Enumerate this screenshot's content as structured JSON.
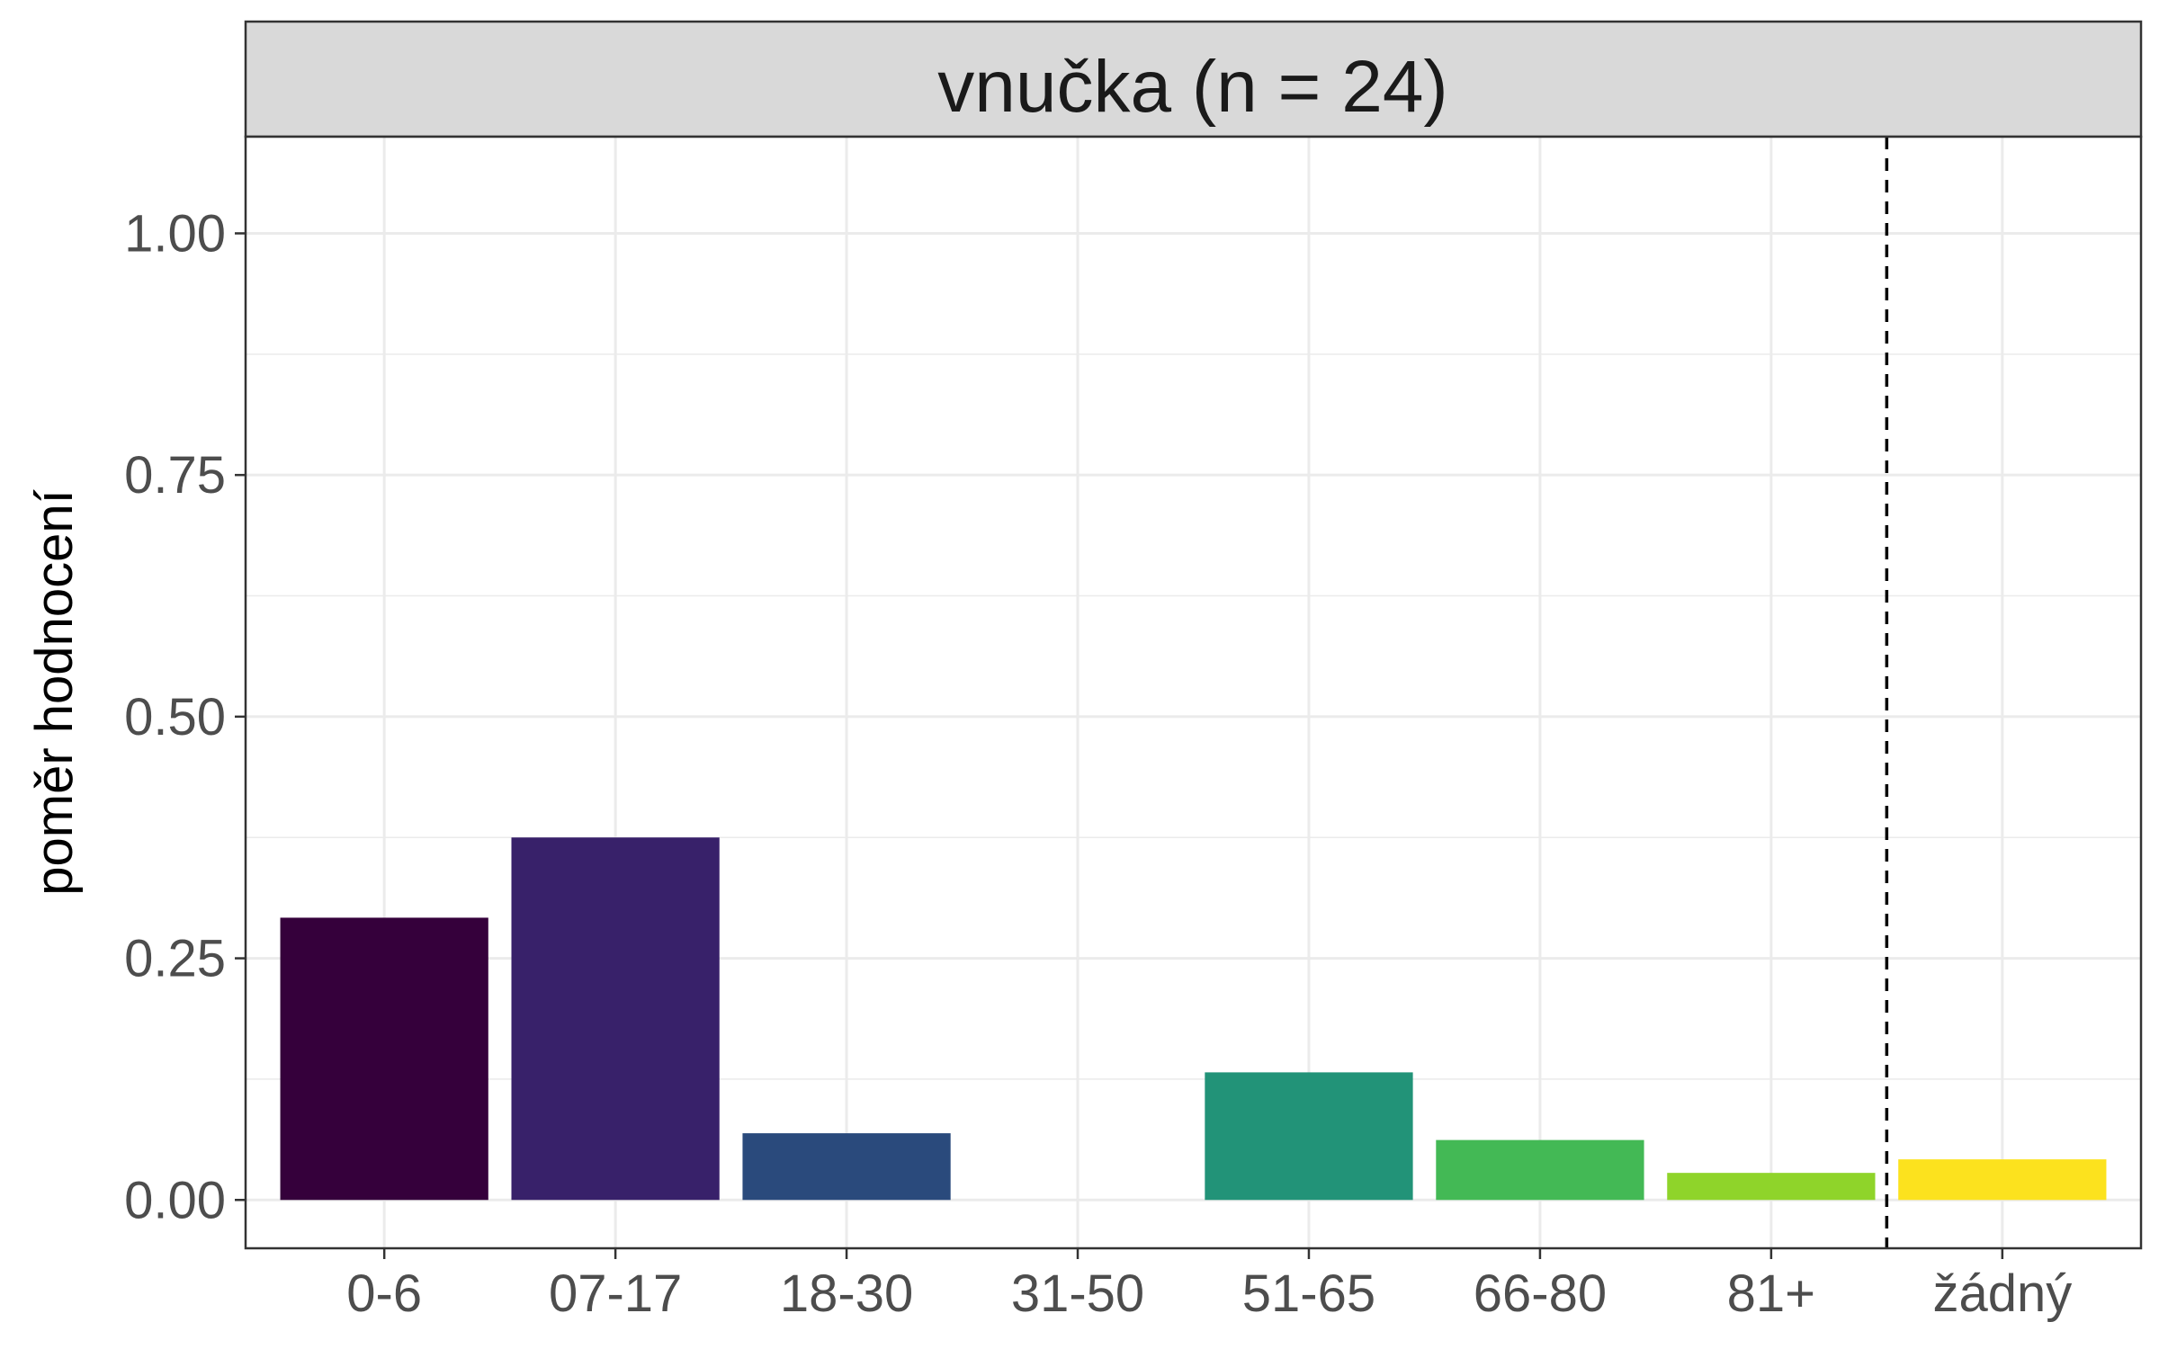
{
  "chart_data": {
    "type": "bar",
    "title": "vnučka (n = 24)",
    "xlabel": "",
    "ylabel": "poměr hodnocení",
    "categories": [
      "0-6",
      "07-17",
      "18-30",
      "31-50",
      "51-65",
      "66-80",
      "81+",
      "žádný"
    ],
    "values": [
      0.292,
      0.375,
      0.069,
      0.0,
      0.132,
      0.062,
      0.028,
      0.042
    ],
    "colors": [
      "#35003B",
      "#38216A",
      "#2A4A7C",
      "#1F7A8C",
      "#229378",
      "#43B955",
      "#8FD42A",
      "#FCE21E"
    ],
    "ylim": [
      -0.05,
      1.1
    ],
    "yticks": [
      0.0,
      0.25,
      0.5,
      0.75,
      1.0
    ],
    "ytick_labels": [
      "0.00",
      "0.25",
      "0.50",
      "0.75",
      "1.00"
    ],
    "reference_line": {
      "between": [
        "81+",
        "žádný"
      ],
      "style": "dashed"
    },
    "grid": true,
    "legend": "none"
  }
}
